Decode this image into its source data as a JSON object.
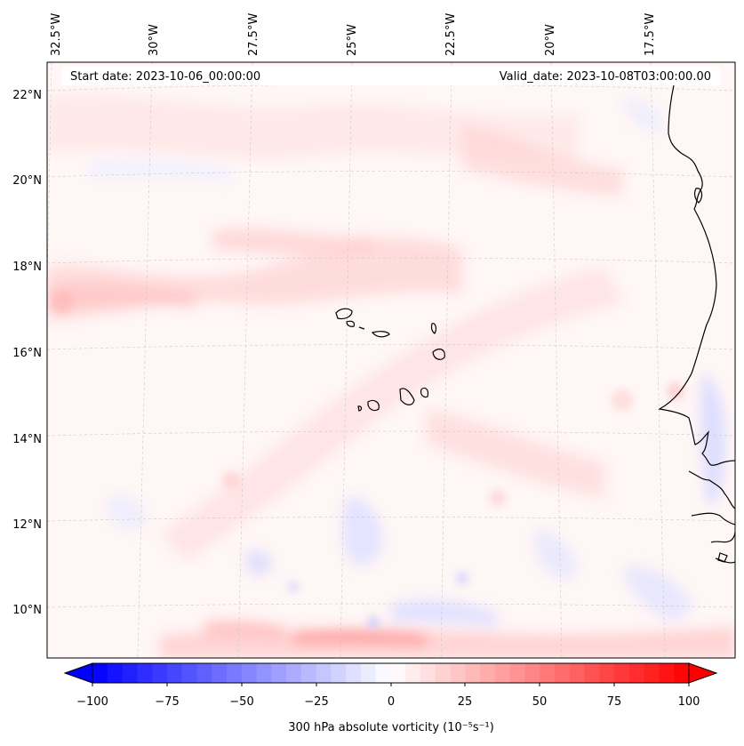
{
  "map": {
    "header": {
      "start_date": "Start date: 2023-10-06_00:00:00",
      "valid_date": "Valid_date: 2023-10-08T03:00:00.00"
    },
    "lon_labels": [
      "32.5°W",
      "30°W",
      "27.5°W",
      "25°W",
      "22.5°W",
      "20°W",
      "17.5°W"
    ],
    "lat_labels": [
      "22°N",
      "20°N",
      "18°N",
      "16°N",
      "14°N",
      "12°N",
      "10°N"
    ],
    "extent": {
      "lon_min": -33.0,
      "lon_max": -15.5,
      "lat_min": 8.9,
      "lat_max": 22.7
    },
    "field": "300 hPa absolute vorticity",
    "colorbar": {
      "label": "300 hPa absolute vorticity (10⁻⁵s⁻¹)",
      "min": -100,
      "max": 100,
      "ticks": [
        "−100",
        "−75",
        "−50",
        "−25",
        "0",
        "25",
        "50",
        "75",
        "100"
      ],
      "colormap": "bwr",
      "extend": "both",
      "color_min": "#0000ff",
      "color_mid": "#ffffff",
      "color_max": "#ff0000"
    },
    "coastline_color": "#000000",
    "gridline_color": "#bbbbbb"
  }
}
